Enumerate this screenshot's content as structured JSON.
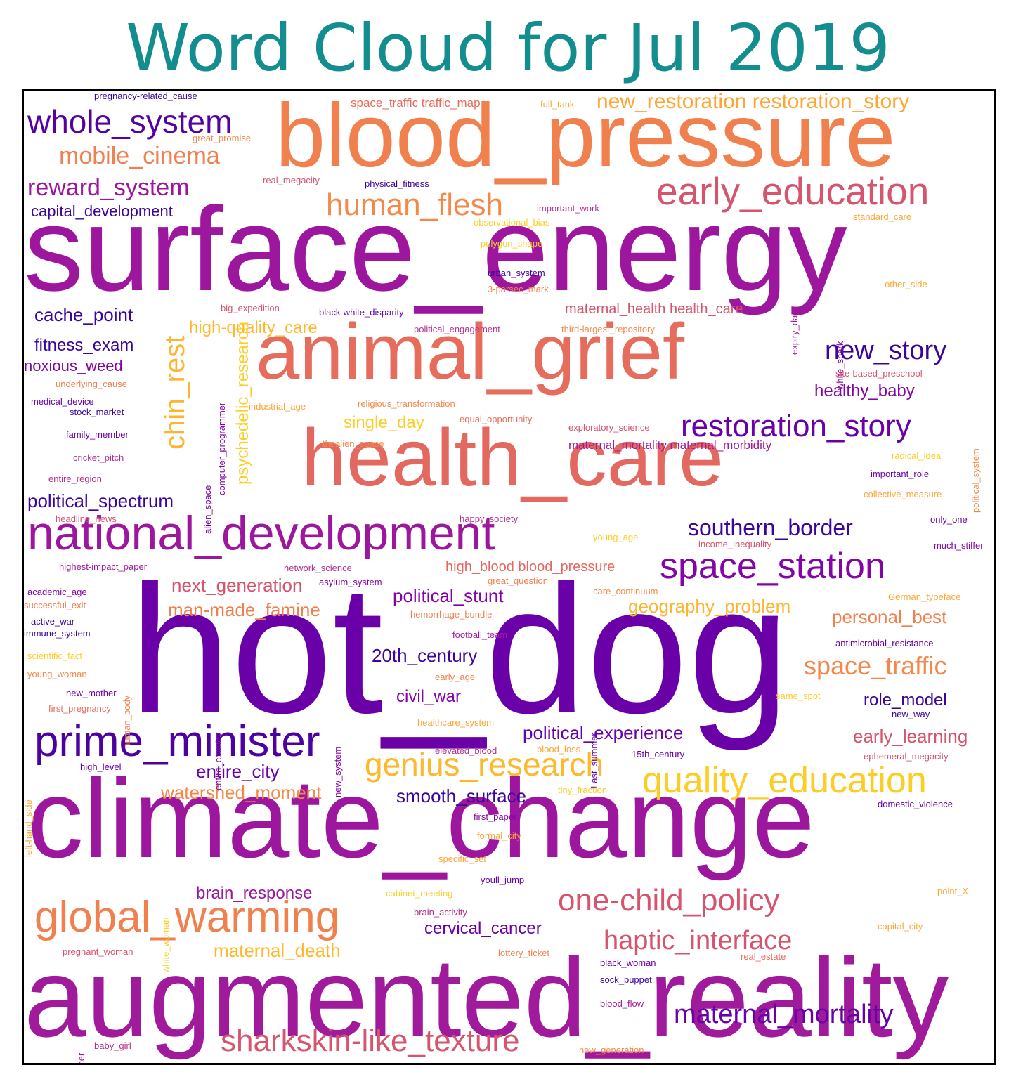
{
  "title": "Word Cloud for Jul 2019",
  "palette": {
    "title": "#138d8d",
    "frame": "#000000",
    "background": "#ffffff"
  },
  "words": [
    {
      "text": "hot_dog",
      "color": "#6a00a8"
    },
    {
      "text": "surface_energy",
      "color": "#9c179e"
    },
    {
      "text": "climate_change",
      "color": "#9c179e"
    },
    {
      "text": "augmented_reality",
      "color": "#a01a9c"
    },
    {
      "text": "blood_pressure",
      "color": "#f0804e"
    },
    {
      "text": "health_care",
      "color": "#e3685f"
    },
    {
      "text": "animal_grief",
      "color": "#e66c5c"
    },
    {
      "text": "national_development",
      "color": "#9c179e"
    },
    {
      "text": "global_warming",
      "color": "#f0804e"
    },
    {
      "text": "prime_minister",
      "color": "#4c02a1"
    },
    {
      "text": "early_education",
      "color": "#d5546e"
    },
    {
      "text": "quality_education",
      "color": "#fcce25"
    },
    {
      "text": "space_station",
      "color": "#8405a7"
    },
    {
      "text": "genius_research",
      "color": "#feb82c"
    },
    {
      "text": "whole_system",
      "color": "#5402a3"
    },
    {
      "text": "restoration_story",
      "color": "#6a00a8"
    },
    {
      "text": "human_flesh",
      "color": "#f48849"
    },
    {
      "text": "one-child_policy",
      "color": "#d5546e"
    },
    {
      "text": "sharkskin-like_texture",
      "color": "#d5546e"
    },
    {
      "text": "haptic_interface",
      "color": "#d5546e"
    },
    {
      "text": "new_story",
      "color": "#3b049a"
    },
    {
      "text": "chin_rest",
      "color": "#fdb42f"
    },
    {
      "text": "maternal_mortality",
      "color": "#6a00a8"
    },
    {
      "text": "space_traffic",
      "color": "#f48849"
    },
    {
      "text": "mobile_cinema",
      "color": "#f0804e"
    },
    {
      "text": "reward_system",
      "color": "#9c179e"
    },
    {
      "text": "southern_border",
      "color": "#3b049a"
    },
    {
      "text": "new_restoration restoration_story",
      "color": "#fca636"
    },
    {
      "text": "political_spectrum",
      "color": "#3b049a"
    },
    {
      "text": "cache_point",
      "color": "#3b049a"
    },
    {
      "text": "psychedelic_research",
      "color": "#fcce25"
    },
    {
      "text": "watershed_moment",
      "color": "#f48849"
    },
    {
      "text": "man-made_famine",
      "color": "#f0804e"
    },
    {
      "text": "next_generation",
      "color": "#d5546e"
    },
    {
      "text": "20th_century",
      "color": "#3b049a"
    },
    {
      "text": "entire_city",
      "color": "#6a00a8"
    },
    {
      "text": "smooth_surface",
      "color": "#3b049a"
    },
    {
      "text": "political_experience",
      "color": "#6a00a8"
    },
    {
      "text": "political_stunt",
      "color": "#8405a7"
    },
    {
      "text": "personal_best",
      "color": "#f0804e"
    },
    {
      "text": "geography_problem",
      "color": "#fdb42f"
    },
    {
      "text": "maternal_death",
      "color": "#feb82c"
    },
    {
      "text": "brain_response",
      "color": "#9c179e"
    },
    {
      "text": "cervical_cancer",
      "color": "#6a00a8"
    },
    {
      "text": "early_learning",
      "color": "#d5546e"
    },
    {
      "text": "role_model",
      "color": "#3b049a"
    },
    {
      "text": "civil_war",
      "color": "#8405a7"
    },
    {
      "text": "fitness_exam",
      "color": "#3b049a"
    },
    {
      "text": "healthy_baby",
      "color": "#8405a7"
    },
    {
      "text": "high-quality_care",
      "color": "#feb82c"
    },
    {
      "text": "single_day",
      "color": "#fcce25"
    },
    {
      "text": "capital_development",
      "color": "#3b049a"
    },
    {
      "text": "noxious_weed",
      "color": "#8405a7"
    },
    {
      "text": "maternal_health health_care",
      "color": "#d5546e"
    },
    {
      "text": "high_blood blood_pressure",
      "color": "#e3685f"
    },
    {
      "text": "space_traffic traffic_map",
      "color": "#e66c5c"
    },
    {
      "text": "maternal_mortality maternal_morbidity",
      "color": "#a01a9c"
    },
    {
      "text": "pregnancy-related_cause",
      "color": "#3b049a"
    },
    {
      "text": "great_promise",
      "color": "#f48849"
    },
    {
      "text": "full_tank",
      "color": "#fca636"
    },
    {
      "text": "real_megacity",
      "color": "#d5546e"
    },
    {
      "text": "physical_fitness",
      "color": "#3b049a"
    },
    {
      "text": "important_work",
      "color": "#b52f8c"
    },
    {
      "text": "observational_bias",
      "color": "#fcce25"
    },
    {
      "text": "polygon_shape",
      "color": "#fcce25"
    },
    {
      "text": "urban_system",
      "color": "#3b049a"
    },
    {
      "text": "3-parsec_mark",
      "color": "#f48849"
    },
    {
      "text": "standard_care",
      "color": "#fca636"
    },
    {
      "text": "expiry_date",
      "color": "#a01a9c"
    },
    {
      "text": "white_shark",
      "color": "#8405a7"
    },
    {
      "text": "other_side",
      "color": "#fca636"
    },
    {
      "text": "big_expedition",
      "color": "#d5546e"
    },
    {
      "text": "black-white_disparity",
      "color": "#6a00a8"
    },
    {
      "text": "political_engagement",
      "color": "#b52f8c"
    },
    {
      "text": "third-largest_repository",
      "color": "#f48849"
    },
    {
      "text": "site-based_preschool",
      "color": "#d5546e"
    },
    {
      "text": "underlying_cause",
      "color": "#f0804e"
    },
    {
      "text": "medical_device",
      "color": "#6a00a8"
    },
    {
      "text": "stock_market",
      "color": "#3b049a"
    },
    {
      "text": "family_member",
      "color": "#6a00a8"
    },
    {
      "text": "cricket_pitch",
      "color": "#b52f8c"
    },
    {
      "text": "entire_region",
      "color": "#b52f8c"
    },
    {
      "text": "alien_space",
      "color": "#6a00a8"
    },
    {
      "text": "computer_programmer",
      "color": "#8405a7"
    },
    {
      "text": "industrial_age",
      "color": "#fca636"
    },
    {
      "text": "religious_transformation",
      "color": "#f48849"
    },
    {
      "text": "equal_opportunity",
      "color": "#e66c5c"
    },
    {
      "text": "thealien_space",
      "color": "#f48849"
    },
    {
      "text": "exploratory_science",
      "color": "#d5546e"
    },
    {
      "text": "radical_idea",
      "color": "#fcce25"
    },
    {
      "text": "political_system",
      "color": "#f48849"
    },
    {
      "text": "important_role",
      "color": "#6a00a8"
    },
    {
      "text": "collective_measure",
      "color": "#fca636"
    },
    {
      "text": "headline_news",
      "color": "#d5546e"
    },
    {
      "text": "happy_society",
      "color": "#b52f8c"
    },
    {
      "text": "young_age",
      "color": "#fcce25"
    },
    {
      "text": "income_inequality",
      "color": "#d5546e"
    },
    {
      "text": "only_one",
      "color": "#6a00a8"
    },
    {
      "text": "much_stiffer",
      "color": "#8405a7"
    },
    {
      "text": "highest-impact_paper",
      "color": "#a01a9c"
    },
    {
      "text": "network_science",
      "color": "#b52f8c"
    },
    {
      "text": "great_question",
      "color": "#f0804e"
    },
    {
      "text": "academic_age",
      "color": "#8405a7"
    },
    {
      "text": "asylum_system",
      "color": "#8405a7"
    },
    {
      "text": "care_continuum",
      "color": "#f48849"
    },
    {
      "text": "successful_exit",
      "color": "#f0804e"
    },
    {
      "text": "human_body",
      "color": "#f0804e"
    },
    {
      "text": "German_typeface",
      "color": "#fca636"
    },
    {
      "text": "active_war",
      "color": "#3b049a"
    },
    {
      "text": "hemorrhage_bundle",
      "color": "#f0804e"
    },
    {
      "text": "immune_system",
      "color": "#3b049a"
    },
    {
      "text": "football_team",
      "color": "#a01a9c"
    },
    {
      "text": "antimicrobial_resistance",
      "color": "#6a00a8"
    },
    {
      "text": "scientific_fact",
      "color": "#fcce25"
    },
    {
      "text": "entire_country",
      "color": "#8405a7"
    },
    {
      "text": "young_woman",
      "color": "#f48849"
    },
    {
      "text": "new_system",
      "color": "#8405a7"
    },
    {
      "text": "early_age",
      "color": "#f0804e"
    },
    {
      "text": "Last_summer",
      "color": "#6a00a8"
    },
    {
      "text": "new_mother",
      "color": "#6a00a8"
    },
    {
      "text": "same_spot",
      "color": "#fcce25"
    },
    {
      "text": "first_pregnancy",
      "color": "#e66c5c"
    },
    {
      "text": "new_way",
      "color": "#3b049a"
    },
    {
      "text": "left-hand_side",
      "color": "#fca636"
    },
    {
      "text": "healthcare_system",
      "color": "#fca636"
    },
    {
      "text": "elevated_blood",
      "color": "#b52f8c"
    },
    {
      "text": "blood_loss",
      "color": "#fca636"
    },
    {
      "text": "15th_century",
      "color": "#6a00a8"
    },
    {
      "text": "ephemeral_megacity",
      "color": "#d5546e"
    },
    {
      "text": "high_level",
      "color": "#6a00a8"
    },
    {
      "text": "tiny_fraction",
      "color": "#fcce25"
    },
    {
      "text": "domestic_violence",
      "color": "#6a00a8"
    },
    {
      "text": "first_paper",
      "color": "#8405a7"
    },
    {
      "text": "formal_city",
      "color": "#fca636"
    },
    {
      "text": "white_woman",
      "color": "#fcce25"
    },
    {
      "text": "specific_set",
      "color": "#fca636"
    },
    {
      "text": "youll_jump",
      "color": "#6a00a8"
    },
    {
      "text": "cabinet_meeting",
      "color": "#fcce25"
    },
    {
      "text": "point_X",
      "color": "#fca636"
    },
    {
      "text": "brain_activity",
      "color": "#b52f8c"
    },
    {
      "text": "capital_city",
      "color": "#fca636"
    },
    {
      "text": "pregnant_woman",
      "color": "#d5546e"
    },
    {
      "text": "lottery_ticket",
      "color": "#f0804e"
    },
    {
      "text": "black_woman",
      "color": "#6a00a8"
    },
    {
      "text": "real_estate",
      "color": "#e66c5c"
    },
    {
      "text": "police_officer",
      "color": "#a01a9c"
    },
    {
      "text": "sock_puppet",
      "color": "#3b049a"
    },
    {
      "text": "blood_flow",
      "color": "#a01a9c"
    },
    {
      "text": "baby_girl",
      "color": "#b52f8c"
    },
    {
      "text": "new_generation",
      "color": "#f48849"
    }
  ]
}
